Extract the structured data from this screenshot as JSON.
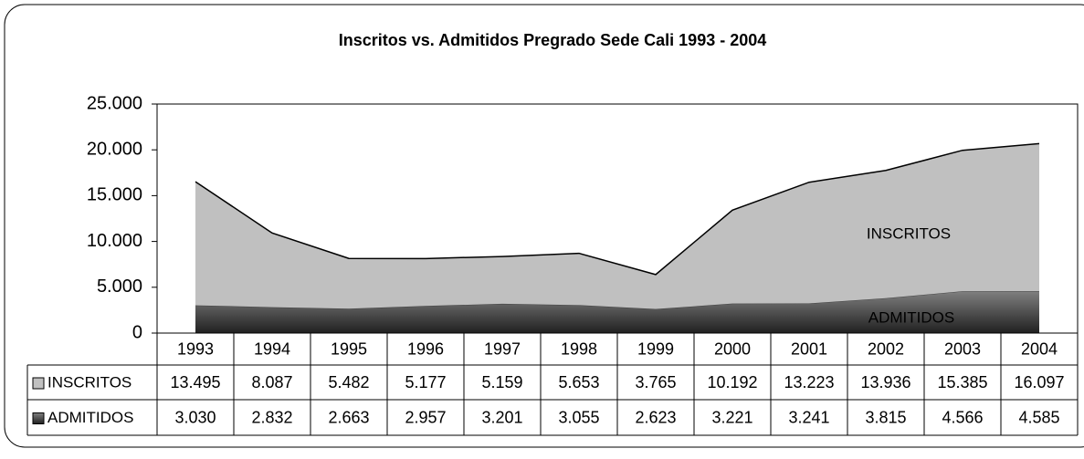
{
  "chart_data": {
    "type": "stacked_area",
    "title": "Inscritos vs. Admitidos Pregrado Sede Cali 1993 - 2004",
    "categories": [
      "1993",
      "1994",
      "1995",
      "1996",
      "1997",
      "1998",
      "1999",
      "2000",
      "2001",
      "2002",
      "2003",
      "2004"
    ],
    "series": [
      {
        "name": "ADMITIDOS",
        "color": "#333333",
        "values": [
          3030,
          2832,
          2663,
          2957,
          3201,
          3055,
          2623,
          3221,
          3241,
          3815,
          4566,
          4585
        ],
        "value_labels": [
          "3.030",
          "2.832",
          "2.663",
          "2.957",
          "3.201",
          "3.055",
          "2.623",
          "3.221",
          "3.241",
          "3.815",
          "4.566",
          "4.585"
        ]
      },
      {
        "name": "INSCRITOS",
        "color": "#c0c0c0",
        "values": [
          13495,
          8087,
          5482,
          5177,
          5159,
          5653,
          3765,
          10192,
          13223,
          13936,
          15385,
          16097
        ],
        "value_labels": [
          "13.495",
          "8.087",
          "5.482",
          "5.177",
          "5.159",
          "5.653",
          "3.765",
          "10.192",
          "13.223",
          "13.936",
          "15.385",
          "16.097"
        ]
      }
    ],
    "ylim": [
      0,
      25000
    ],
    "yticks": [
      0,
      {
        "value": 5000,
        "label": "5.000"
      },
      {
        "value": 10000,
        "label": "10.000"
      },
      {
        "value": 15000,
        "label": "15.000"
      },
      {
        "value": 20000,
        "label": "20.000"
      },
      {
        "value": 25000,
        "label": "25.000"
      }
    ]
  }
}
